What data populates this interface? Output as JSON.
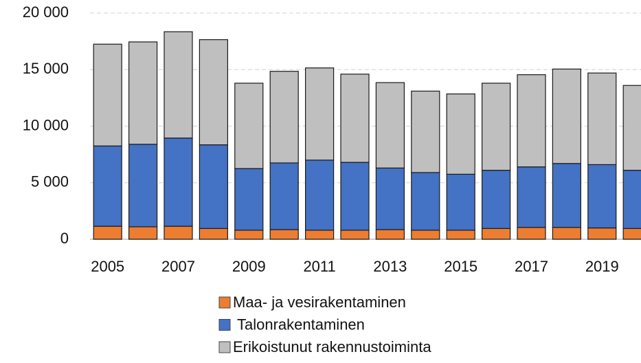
{
  "chart_data": {
    "type": "stacked_bar",
    "categories": [
      "2005",
      null,
      "2007",
      null,
      "2009",
      null,
      "2011",
      null,
      "2013",
      null,
      "2015",
      null,
      "2017",
      null,
      "2019",
      null
    ],
    "series": [
      {
        "name": "Maa- ja vesirakentaminen",
        "color": "#ed7d31",
        "values": [
          1150,
          1100,
          1150,
          950,
          800,
          850,
          800,
          800,
          850,
          800,
          800,
          950,
          1050,
          1050,
          1000,
          950
        ]
      },
      {
        "name": "Talonrakentaminen",
        "color": "#4472c4",
        "values": [
          7100,
          7300,
          7800,
          7400,
          5450,
          5900,
          6200,
          6000,
          5450,
          5100,
          4950,
          5150,
          5350,
          5650,
          5600,
          5150
        ]
      },
      {
        "name": "Erikoistunut rakennustoiminta",
        "color": "#bfbfbf",
        "values": [
          9000,
          9050,
          9400,
          9300,
          7550,
          8100,
          8150,
          7800,
          7550,
          7200,
          7100,
          7700,
          8150,
          8350,
          8100,
          7500
        ]
      }
    ],
    "ylim": [
      0,
      20000
    ],
    "yticks": [
      0,
      {
        "value": 5000,
        "label": "5 000"
      },
      {
        "value": 10000,
        "label": "10 000"
      },
      {
        "value": 15000,
        "label": "15 000"
      },
      {
        "value": 20000,
        "label": "20 000"
      }
    ],
    "grid": true
  }
}
